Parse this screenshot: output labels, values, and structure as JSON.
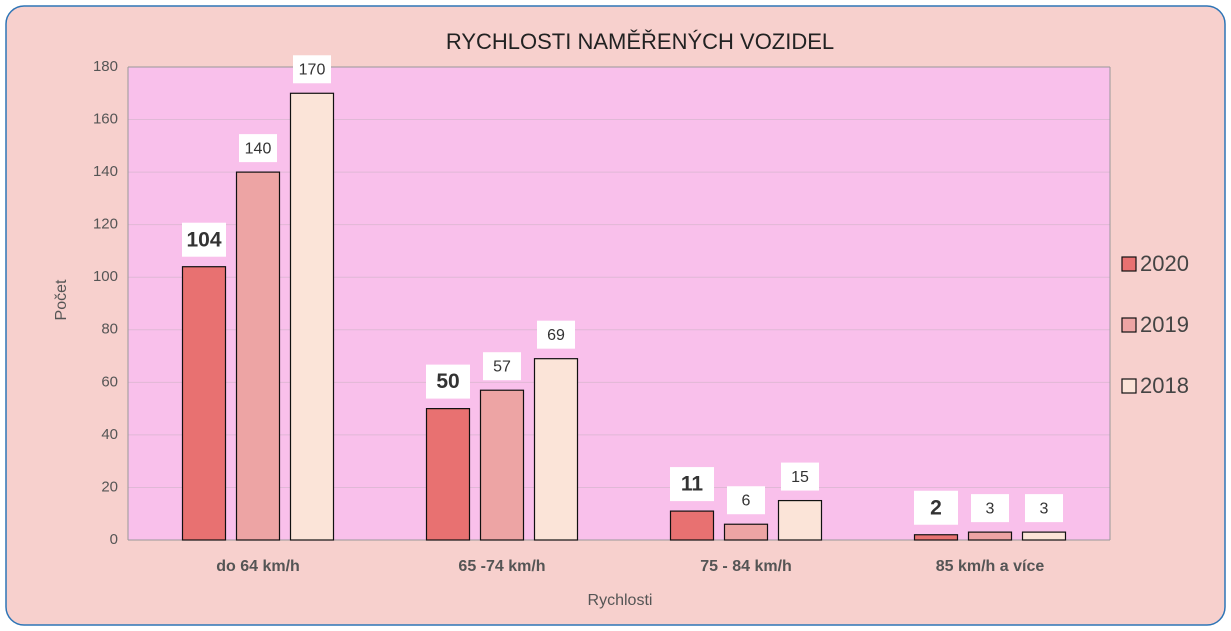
{
  "chart_data": {
    "type": "bar",
    "title": "RYCHLOSTI NAMĚŘENÝCH VOZIDEL",
    "x_label": "Rychlosti",
    "y_label": "Počet",
    "categories": [
      "do 64 km/h",
      "65 -74 km/h",
      "75 - 84 km/h",
      "85 km/h a více"
    ],
    "series": [
      {
        "name": "2020",
        "color": "#e87171",
        "values": [
          104,
          50,
          11,
          2
        ]
      },
      {
        "name": "2019",
        "color": "#eda4a4",
        "values": [
          140,
          57,
          6,
          3
        ]
      },
      {
        "name": "2018",
        "color": "#fbe4d8",
        "values": [
          170,
          69,
          15,
          3
        ]
      }
    ],
    "ylim": [
      0,
      180
    ],
    "yticks": [
      0,
      20,
      40,
      60,
      80,
      100,
      120,
      140,
      160,
      180
    ],
    "grid": true,
    "legend": "right"
  }
}
